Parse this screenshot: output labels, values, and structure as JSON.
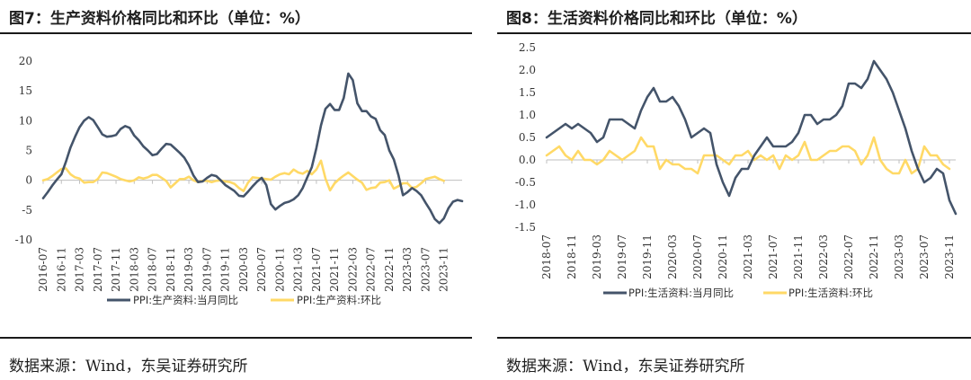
{
  "colors": {
    "yoy": "#44546a",
    "mom": "#ffd966"
  },
  "panels": [
    {
      "title": "图7：生产资料价格同比和环比（单位：%）",
      "source": "数据来源：Wind，东吴证券研究所",
      "chart_data": {
        "type": "line",
        "x_start": "2016-07",
        "x_tick_labels": [
          "2016-07",
          "2016-11",
          "2017-03",
          "2017-07",
          "2017-11",
          "2018-03",
          "2018-07",
          "2018-11",
          "2019-03",
          "2019-07",
          "2019-11",
          "2020-03",
          "2020-07",
          "2020-11",
          "2021-03",
          "2021-07",
          "2021-11",
          "2022-03",
          "2022-07",
          "2022-11",
          "2023-03",
          "2023-07",
          "2023-11"
        ],
        "ylim": [
          -10,
          20
        ],
        "y_ticks": [
          20,
          15,
          10,
          5,
          0,
          -5,
          -10
        ],
        "series": [
          {
            "name": "PPI:生产资料:当月同比",
            "color": "#44546a",
            "values": [
              -3.0,
              -2.0,
              -0.9,
              0.1,
              1.0,
              3.1,
              5.5,
              7.3,
              8.9,
              10.0,
              10.6,
              10.1,
              8.9,
              7.7,
              7.3,
              7.4,
              7.6,
              8.6,
              9.1,
              8.8,
              7.5,
              6.7,
              5.7,
              5.0,
              4.2,
              4.4,
              5.3,
              6.1,
              6.0,
              5.3,
              4.6,
              3.8,
              2.5,
              0.8,
              -0.3,
              -0.2,
              0.4,
              0.9,
              0.7,
              0.0,
              -0.8,
              -1.3,
              -1.8,
              -2.6,
              -2.7,
              -1.9,
              -1.0,
              -0.2,
              0.4,
              -0.8,
              -4.0,
              -4.9,
              -4.3,
              -3.8,
              -3.6,
              -3.2,
              -2.5,
              -1.3,
              0.5,
              2.2,
              5.4,
              9.2,
              12.0,
              12.8,
              11.8,
              11.8,
              13.8,
              17.9,
              16.8,
              12.9,
              11.6,
              11.6,
              10.7,
              10.3,
              8.4,
              7.6,
              5.0,
              3.5,
              0.9,
              -2.5,
              -2.0,
              -1.3,
              -1.8,
              -2.5,
              -3.8,
              -5.0,
              -6.5,
              -7.2,
              -6.4,
              -4.7,
              -3.6,
              -3.3,
              -3.5
            ]
          },
          {
            "name": "PPI:生产资料:环比",
            "color": "#ffd966",
            "values": [
              0.0,
              0.2,
              0.7,
              1.3,
              1.9,
              2.0,
              1.0,
              0.5,
              0.3,
              -0.4,
              -0.3,
              -0.3,
              0.2,
              1.3,
              1.2,
              0.9,
              0.6,
              0.2,
              0.0,
              -0.2,
              0.0,
              0.5,
              0.3,
              0.5,
              0.9,
              0.9,
              0.4,
              -0.1,
              -1.2,
              -0.5,
              0.2,
              0.2,
              0.6,
              0.0,
              -0.3,
              -0.1,
              -0.1,
              -0.3,
              -0.1,
              0.0,
              -0.2,
              -0.3,
              -0.6,
              -1.3,
              -1.8,
              -0.4,
              0.5,
              0.4,
              0.3,
              0.2,
              0.1,
              0.6,
              1.0,
              1.2,
              1.0,
              1.8,
              1.3,
              1.1,
              1.6,
              1.0,
              1.8,
              3.3,
              0.3,
              -1.7,
              -0.5,
              0.2,
              0.8,
              1.3,
              0.7,
              0.1,
              -0.4,
              -1.6,
              -1.3,
              -1.2,
              -0.4,
              -0.3,
              0.0,
              -1.4,
              -1.0,
              -0.5,
              -0.5,
              -1.3,
              -1.1,
              -0.5,
              0.2,
              0.4,
              0.6,
              0.2,
              -0.1
            ]
          }
        ]
      }
    },
    {
      "title": "图8：生活资料价格同比和环比（单位：%）",
      "source": "数据来源：Wind，东吴证券研究所",
      "chart_data": {
        "type": "line",
        "x_start": "2018-07",
        "x_tick_labels": [
          "2018-07",
          "2018-11",
          "2019-03",
          "2019-07",
          "2019-11",
          "2020-03",
          "2020-07",
          "2020-11",
          "2021-03",
          "2021-07",
          "2021-11",
          "2022-03",
          "2022-07",
          "2022-11",
          "2023-03",
          "2023-07",
          "2023-11"
        ],
        "ylim": [
          -1.5,
          2.5
        ],
        "y_ticks": [
          2.5,
          2.0,
          1.5,
          1.0,
          0.5,
          0.0,
          -0.5,
          -1.0,
          -1.5
        ],
        "series": [
          {
            "name": "PPI:生活资料:当月同比",
            "color": "#44546a",
            "values": [
              0.5,
              0.6,
              0.7,
              0.8,
              0.7,
              0.8,
              0.7,
              0.6,
              0.4,
              0.5,
              0.9,
              0.9,
              0.9,
              0.8,
              0.7,
              1.1,
              1.4,
              1.6,
              1.3,
              1.3,
              1.4,
              1.2,
              0.9,
              0.5,
              0.6,
              0.7,
              0.6,
              -0.1,
              -0.5,
              -0.8,
              -0.4,
              -0.2,
              -0.2,
              0.1,
              0.3,
              0.5,
              0.3,
              0.3,
              0.3,
              0.4,
              0.6,
              1.0,
              1.0,
              0.8,
              0.9,
              0.9,
              1.0,
              1.2,
              1.7,
              1.7,
              1.6,
              1.8,
              2.2,
              2.0,
              1.8,
              1.5,
              1.1,
              0.7,
              0.2,
              -0.2,
              -0.5,
              -0.4,
              -0.2,
              -0.3,
              -0.9,
              -1.2
            ]
          },
          {
            "name": "PPI:生活资料:环比",
            "color": "#ffd966",
            "values": [
              0.1,
              0.2,
              0.3,
              0.1,
              0.0,
              0.2,
              0.0,
              0.0,
              -0.1,
              0.0,
              0.2,
              0.1,
              0.0,
              0.1,
              0.2,
              0.5,
              0.3,
              0.3,
              -0.2,
              0.0,
              -0.1,
              -0.1,
              -0.2,
              -0.2,
              -0.3,
              0.1,
              0.1,
              0.1,
              0.0,
              -0.1,
              0.1,
              0.1,
              0.2,
              0.0,
              0.1,
              0.0,
              0.1,
              -0.2,
              0.1,
              0.0,
              0.1,
              0.4,
              0.0,
              0.0,
              0.1,
              0.2,
              0.2,
              0.3,
              0.3,
              0.2,
              -0.1,
              0.1,
              0.5,
              0.0,
              -0.2,
              -0.3,
              -0.3,
              0.0,
              -0.3,
              -0.2,
              0.3,
              0.1,
              0.1,
              -0.1,
              -0.2
            ]
          }
        ]
      }
    }
  ]
}
